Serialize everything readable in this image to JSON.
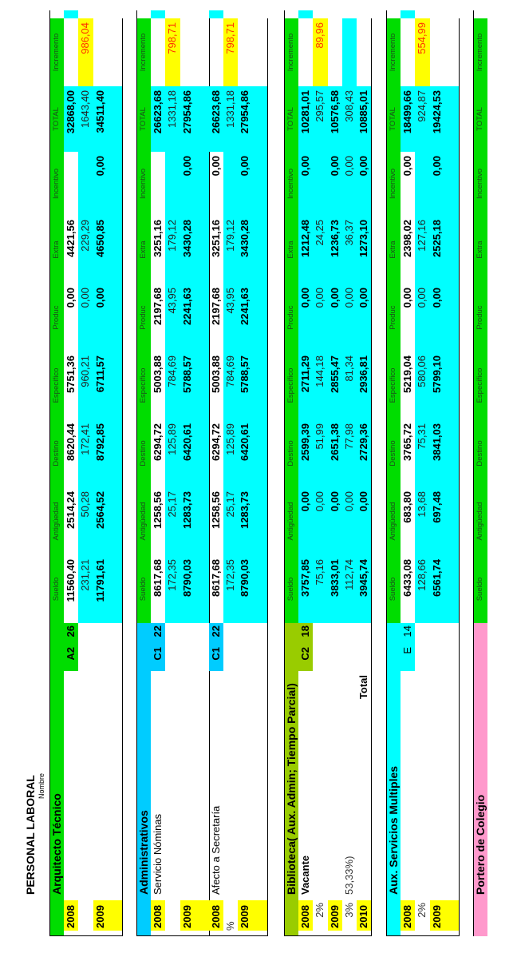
{
  "title": "PERSONAL LABORAL",
  "nombre_label": "Nombre",
  "columns": [
    "Sueldo",
    "Antigüedad",
    "Destino",
    "Específico",
    "Produc",
    "Extra",
    "Incentivo",
    "TOTAL",
    "Incremento"
  ],
  "colors": {
    "header_green": "#00dd00",
    "cyan": "#00ffff",
    "yellow": "#ffff00",
    "blue": "#00ccff",
    "olive": "#99cc00",
    "pink": "#ff99cc",
    "increment_text": "#ff3300"
  },
  "blocks": [
    {
      "name": "Arquitecto Técnico",
      "header_color": "#00dd00",
      "rows": [
        {
          "year": "2008",
          "pct": "",
          "label": "",
          "group": "A2",
          "level": "26",
          "kind": "base",
          "cyan": false,
          "values": [
            "11560,40",
            "2514,24",
            "8620,44",
            "5751,36",
            "0,00",
            "4421,56",
            "",
            "32868,00",
            ""
          ]
        },
        {
          "year": "",
          "pct": "",
          "label": "",
          "kind": "inc",
          "cyan": true,
          "values": [
            "231,21",
            "50,28",
            "172,41",
            "960,21",
            "0,00",
            "229,29",
            "",
            "1643,40",
            "986,04"
          ]
        },
        {
          "year": "2009",
          "pct": "",
          "label": "",
          "kind": "sum",
          "cyan": true,
          "values": [
            "11791,61",
            "2564,52",
            "8792,85",
            "6711,57",
            "0,00",
            "4650,85",
            "0,00",
            "34511,40",
            ""
          ]
        },
        {
          "year": "",
          "pct": "",
          "label": "",
          "kind": "blank",
          "cyan": true,
          "values": [
            "",
            "",
            "",
            "",
            "",
            "",
            "",
            "",
            ""
          ]
        }
      ]
    },
    {
      "name": "Administrativos",
      "header_color": "#00ccff",
      "rows": [
        {
          "year": "2008",
          "pct": "",
          "label": "Servicio Nóminas",
          "group": "C1",
          "level": "22",
          "kind": "base",
          "cyan": false,
          "values": [
            "8617,68",
            "1258,56",
            "6294,72",
            "5003,88",
            "2197,68",
            "3251,16",
            "",
            "26623,68",
            ""
          ]
        },
        {
          "year": "",
          "pct": "",
          "label": "",
          "kind": "inc",
          "cyan": true,
          "values": [
            "172,35",
            "25,17",
            "125,89",
            "784,69",
            "43,95",
            "179,12",
            "",
            "1331,18",
            "798,71"
          ]
        },
        {
          "year": "2009",
          "pct": "",
          "label": "",
          "kind": "sum",
          "cyan": true,
          "values": [
            "8790,03",
            "1283,73",
            "6420,61",
            "5788,57",
            "2241,63",
            "3430,28",
            "0,00",
            "27954,86",
            ""
          ]
        },
        {
          "year": "",
          "pct": "",
          "label": "",
          "kind": "blank",
          "cyan": true,
          "values": [
            "",
            "",
            "",
            "",
            "",
            "",
            "",
            "",
            ""
          ]
        },
        {
          "year": "2008",
          "pct": "",
          "label": "Afecto a Secretaría",
          "group": "C1",
          "level": "22",
          "kind": "base",
          "cyan": false,
          "separator": true,
          "values": [
            "8617,68",
            "1258,56",
            "6294,72",
            "5003,88",
            "2197,68",
            "3251,16",
            "0,00",
            "26623,68",
            ""
          ]
        },
        {
          "year": "",
          "pct": "%",
          "label": "",
          "kind": "inc",
          "cyan": true,
          "values": [
            "172,35",
            "25,17",
            "125,89",
            "784,69",
            "43,95",
            "179,12",
            "",
            "1331,18",
            "798,71"
          ]
        },
        {
          "year": "2009",
          "pct": "",
          "label": "",
          "kind": "sum",
          "cyan": true,
          "values": [
            "8790,03",
            "1283,73",
            "6420,61",
            "5788,57",
            "2241,63",
            "3430,28",
            "0,00",
            "27954,86",
            ""
          ]
        },
        {
          "year": "",
          "pct": "",
          "label": "",
          "kind": "blank",
          "cyan": true,
          "values": [
            "",
            "",
            "",
            "",
            "",
            "",
            "",
            "",
            ""
          ]
        }
      ]
    },
    {
      "name": "Biblioteca( Aux. Admin; Tiempo Parcial)",
      "header_color": "#99cc00",
      "rows": [
        {
          "year": "2008",
          "pct": "",
          "label": "Vacante",
          "label_bold": true,
          "group": "C2",
          "level": "18",
          "kind": "base",
          "cyan": true,
          "values": [
            "3757,85",
            "0,00",
            "2599,39",
            "2711,29",
            "0,00",
            "1212,48",
            "0,00",
            "10281,01",
            ""
          ]
        },
        {
          "year": "",
          "pct": "2%",
          "label": "",
          "kind": "inc",
          "cyan": true,
          "values": [
            "75,16",
            "0,00",
            "51,99",
            "144,18",
            "0,00",
            "24,25",
            "",
            "295,57",
            "89,96"
          ]
        },
        {
          "year": "2009",
          "pct": "",
          "label": "",
          "kind": "sum",
          "cyan": true,
          "values": [
            "3833,01",
            "0,00",
            "2651,38",
            "2855,47",
            "0,00",
            "1236,73",
            "0,00",
            "10576,58",
            ""
          ]
        },
        {
          "year": "",
          "pct": "3%",
          "label": "53,33%)",
          "kind": "inc2",
          "cyan": true,
          "values": [
            "112,74",
            "0,00",
            "77,98",
            "81,34",
            "0,00",
            "36,37",
            "0,00",
            "308,43",
            ""
          ]
        },
        {
          "year": "2010",
          "pct": "",
          "label": "",
          "total_label": "Total",
          "kind": "sum",
          "cyan": true,
          "values": [
            "3945,74",
            "0,00",
            "2729,36",
            "2936,81",
            "0,00",
            "1273,10",
            "0,00",
            "10885,01",
            ""
          ]
        }
      ]
    },
    {
      "name": "Aux. Servicios Multiples",
      "header_color": "#00ffff",
      "rows": [
        {
          "year": "2008",
          "pct": "",
          "label": "",
          "group": "E",
          "level": "14",
          "group_plain": true,
          "kind": "base",
          "cyan": false,
          "values": [
            "6433,08",
            "683,80",
            "3765,72",
            "5219,04",
            "0,00",
            "2398,02",
            "0,00",
            "18499,66",
            ""
          ]
        },
        {
          "year": "",
          "pct": "2%",
          "label": "",
          "kind": "inc",
          "cyan": true,
          "values": [
            "128,66",
            "13,68",
            "75,31",
            "580,06",
            "0,00",
            "127,16",
            "",
            "924,87",
            "554,99"
          ]
        },
        {
          "year": "2009",
          "pct": "",
          "label": "",
          "kind": "sum",
          "cyan": true,
          "values": [
            "6561,74",
            "697,48",
            "3841,03",
            "5799,10",
            "0,00",
            "2525,18",
            "0,00",
            "19424,53",
            ""
          ]
        },
        {
          "year": "",
          "pct": "",
          "label": "",
          "kind": "blank",
          "cyan": true,
          "values": [
            "",
            "",
            "",
            "",
            "",
            "",
            "",
            "",
            ""
          ]
        }
      ]
    },
    {
      "name": "Portero de Colegio",
      "header_color": "#ff99cc",
      "rows": []
    }
  ]
}
